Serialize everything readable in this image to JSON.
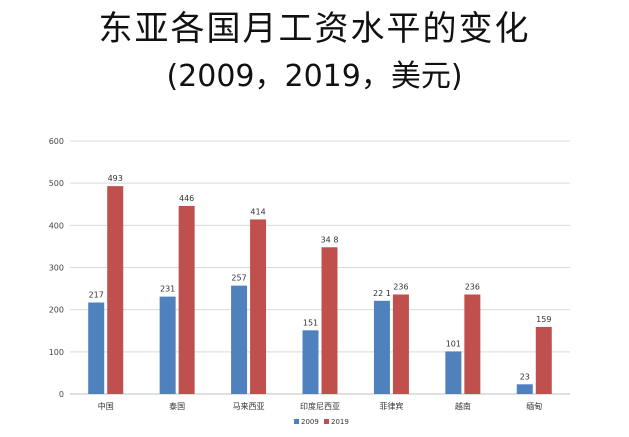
{
  "chart_data": {
    "type": "bar",
    "title": "东亚各国月工资水平的变化",
    "subtitle": "(2009，2019，美元)",
    "categories": [
      "中国",
      "泰国",
      "马来西亚",
      "印度尼西亚",
      "菲律宾",
      "越南",
      "缅甸"
    ],
    "series": [
      {
        "name": "2009",
        "values": [
          217,
          231,
          257,
          151,
          221,
          101,
          23
        ],
        "color": "#4f81bd"
      },
      {
        "name": "2019",
        "values": [
          493,
          446,
          414,
          348,
          236,
          236,
          159
        ],
        "color": "#c0504d"
      }
    ],
    "data_label_text": {
      "2009": [
        "217",
        "231",
        "257",
        "151",
        "22 1",
        "101",
        "23"
      ],
      "2019": [
        "493",
        "446",
        "414",
        "34 8",
        "236",
        "236",
        "159"
      ]
    },
    "yticks": [
      "0",
      "100",
      "200",
      "300",
      "400",
      "500",
      "600"
    ],
    "ylim": [
      0,
      600
    ],
    "grid": true,
    "legend": "bottom"
  }
}
